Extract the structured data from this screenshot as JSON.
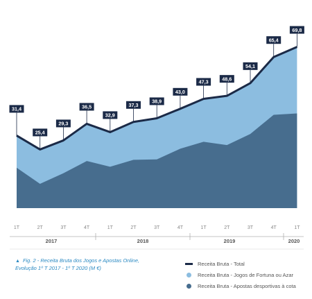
{
  "chart_data": {
    "type": "area",
    "quarters": [
      "1T",
      "2T",
      "3T",
      "4T",
      "1T",
      "2T",
      "3T",
      "4T",
      "1T",
      "2T",
      "3T",
      "4T",
      "1T"
    ],
    "years": [
      "2017",
      "2018",
      "2019",
      "2020"
    ],
    "series": [
      {
        "name": "Receita Bruta - Total",
        "kind": "line",
        "color": "#1b2a47",
        "values": [
          31.4,
          25.4,
          29.3,
          36.5,
          32.9,
          37.3,
          38.9,
          43.0,
          47.3,
          48.6,
          54.1,
          65.4,
          69.8
        ]
      },
      {
        "name": "Receita Bruta - Jogos de Fortuna ou Azar",
        "kind": "area",
        "color": "#8cbde0",
        "values": [
          13.9,
          14.9,
          14.2,
          16.1,
          15.0,
          16.4,
          17.8,
          17.3,
          18.6,
          21.3,
          22.0,
          25.0,
          28.8
        ]
      },
      {
        "name": "Receita Bruta - Apostas desportivas à cota",
        "kind": "area",
        "color": "#476d8e",
        "values": [
          17.5,
          10.5,
          15.1,
          20.4,
          17.9,
          20.9,
          21.1,
          25.7,
          28.7,
          27.3,
          32.1,
          40.4,
          41.0
        ]
      }
    ],
    "data_labels": [
      "31,4",
      "25,4",
      "29,3",
      "36,5",
      "32,9",
      "37,3",
      "38,9",
      "43,0",
      "47,3",
      "48,6",
      "54,1",
      "65,4",
      "69,8"
    ],
    "ylim": [
      0,
      75
    ],
    "grid": false,
    "legend_position": "bottom-right"
  },
  "caption": {
    "marker": "▲",
    "line1": "Fig. 2 - Receita Bruta dos Jogos e Apostas Online,",
    "line2": "Evolução 1º T 2017 - 1º T 2020 (M €)"
  },
  "legend": {
    "total": "Receita Bruta - Total",
    "fortuna": "Receita Bruta - Jogos de Fortuna ou Azar",
    "apostas": "Receita Bruta - Apostas desportivas à cota"
  },
  "colors": {
    "total_line": "#1b2a47",
    "fortuna_area": "#8cbde0",
    "apostas_area": "#476d8e",
    "label_box": "#1b2a47",
    "caption": "#2a89c2"
  }
}
